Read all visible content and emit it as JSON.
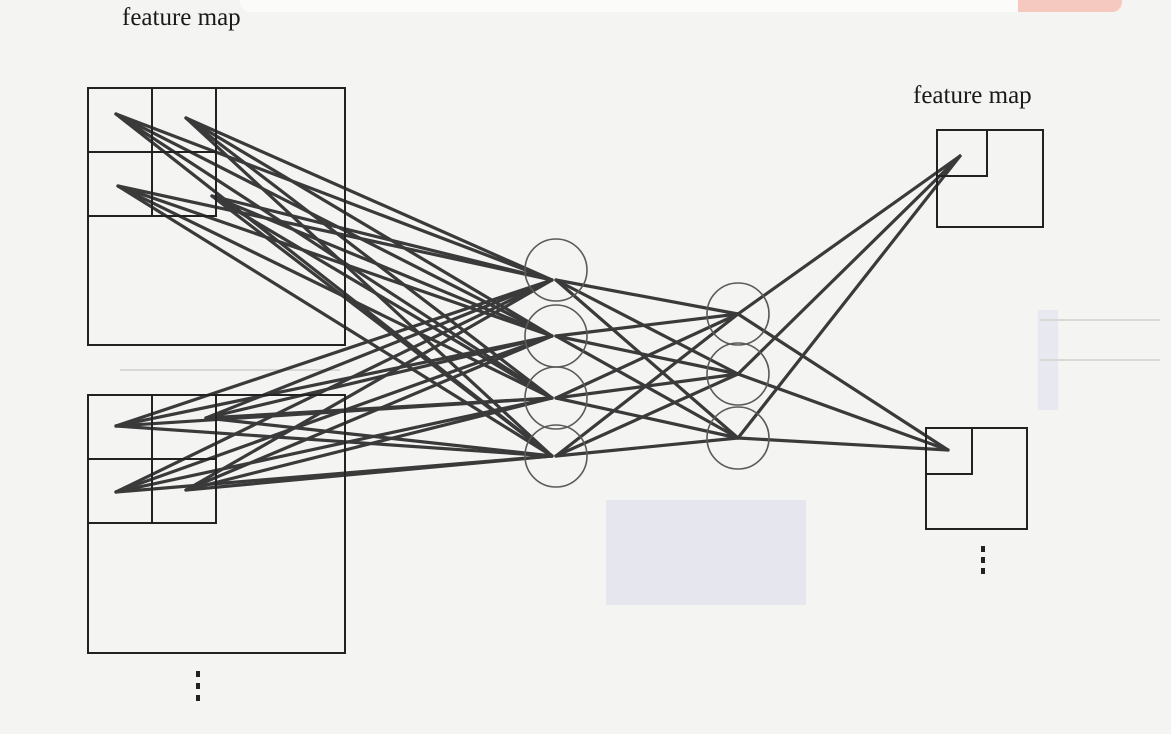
{
  "labels": {
    "left_feature_map": "feature map",
    "right_feature_map": "feature map"
  },
  "colors": {
    "background": "#f4f4f2",
    "line": "#3a3a3a",
    "box": "#222222",
    "node_outline": "#555555",
    "faint": "#cfcfcd"
  }
}
